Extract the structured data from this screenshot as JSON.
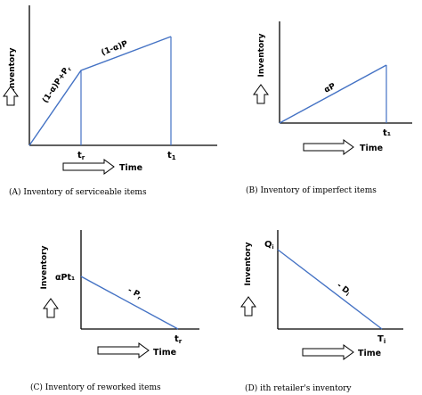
{
  "panels": {
    "a": {
      "y_label": "Inventory",
      "x_label": "Time",
      "segment1_label": "(1-α)P+P",
      "segment1_sub": "r",
      "segment2_label": "(1-α)P",
      "tick1_base": "t",
      "tick1_sub": "r",
      "tick2_base": "t",
      "tick2_sub": "1",
      "caption": "(A)  Inventory of serviceable items"
    },
    "b": {
      "y_label": "Inventory",
      "x_label": "Time",
      "line_label": "αP",
      "tick_label": "t₁",
      "caption": "(B) Inventory of imperfect items"
    },
    "c": {
      "y_label": "Inventory",
      "x_label": "Time",
      "y_value_label": "αPt₁",
      "line_label": "- P",
      "line_sub": "r",
      "tick_base": "t",
      "tick_sub": "r",
      "caption": "(C) Inventory of reworked items"
    },
    "d": {
      "y_label": "Inventory",
      "x_label": "Time",
      "y_value_base": "Q",
      "y_value_sub": "i",
      "line_label": "- D",
      "line_sub": "i",
      "tick_base": "T",
      "tick_sub": "i",
      "caption": "(D) ith retailer's inventory"
    }
  }
}
